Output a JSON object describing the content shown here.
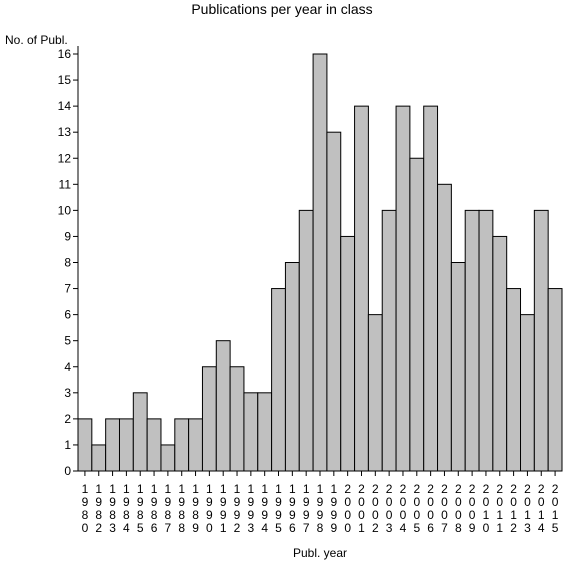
{
  "chart_data": {
    "type": "bar",
    "title": "Publications per year in class",
    "ylabel": "No. of Publ.",
    "xlabel": "Publ. year",
    "categories": [
      "1980",
      "1982",
      "1983",
      "1984",
      "1985",
      "1986",
      "1987",
      "1988",
      "1989",
      "1990",
      "1991",
      "1992",
      "1993",
      "1994",
      "1995",
      "1996",
      "1997",
      "1998",
      "1999",
      "2000",
      "2001",
      "2002",
      "2003",
      "2004",
      "2005",
      "2006",
      "2007",
      "2008",
      "2009",
      "2010",
      "2011",
      "2012",
      "2013",
      "2014",
      "2015"
    ],
    "values": [
      2,
      1,
      2,
      2,
      3,
      2,
      1,
      2,
      2,
      4,
      5,
      4,
      3,
      3,
      7,
      8,
      10,
      16,
      13,
      9,
      14,
      6,
      10,
      14,
      12,
      14,
      11,
      8,
      10,
      10,
      9,
      7,
      6,
      10,
      7
    ],
    "ylim": [
      0,
      16
    ],
    "yticks": [
      0,
      1,
      2,
      3,
      4,
      5,
      6,
      7,
      8,
      9,
      10,
      11,
      12,
      13,
      14,
      15,
      16
    ],
    "bar_color": "#c0c0c0",
    "bar_stroke": "#000000",
    "grid": false
  }
}
